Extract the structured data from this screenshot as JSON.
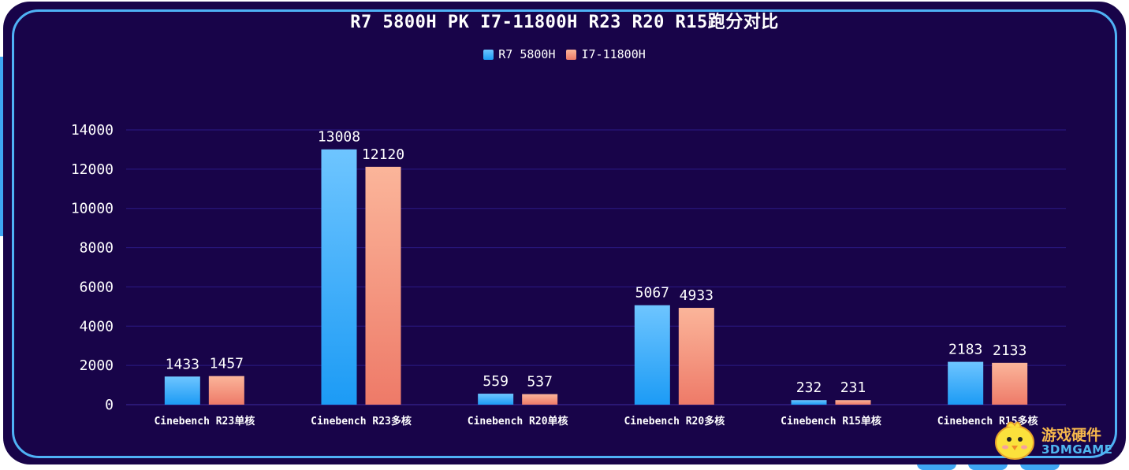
{
  "colors": {
    "background": "#180449",
    "frame": "#4fb2f5",
    "series_1_top": "#6ec5ff",
    "series_1_bottom": "#1c9bf5",
    "series_2_top": "#fbb59a",
    "series_2_bottom": "#ee7a68",
    "gridline": "#2a1a86",
    "text": "#ffffff"
  },
  "chart_data": {
    "type": "bar",
    "title": "R7 5800H PK I7-11800H R23 R20 R15跑分对比",
    "categories": [
      "Cinebench R23单核",
      "Cinebench R23多核",
      "Cinebench R20单核",
      "Cinebench R20多核",
      "Cinebench R15单核",
      "Cinebench R15多核"
    ],
    "series": [
      {
        "name": "R7 5800H",
        "values": [
          1433,
          13008,
          559,
          5067,
          232,
          2183
        ]
      },
      {
        "name": "I7-11800H",
        "values": [
          1457,
          12120,
          537,
          4933,
          231,
          2133
        ]
      }
    ],
    "y_ticks": [
      0,
      2000,
      4000,
      6000,
      8000,
      10000,
      12000,
      14000
    ],
    "ylim": [
      0,
      14000
    ],
    "legend_position": "top-center",
    "grid": true
  },
  "watermark": {
    "line1": "游戏硬件",
    "line2": "3DMGAME",
    "icon": "chick-mascot-icon"
  }
}
